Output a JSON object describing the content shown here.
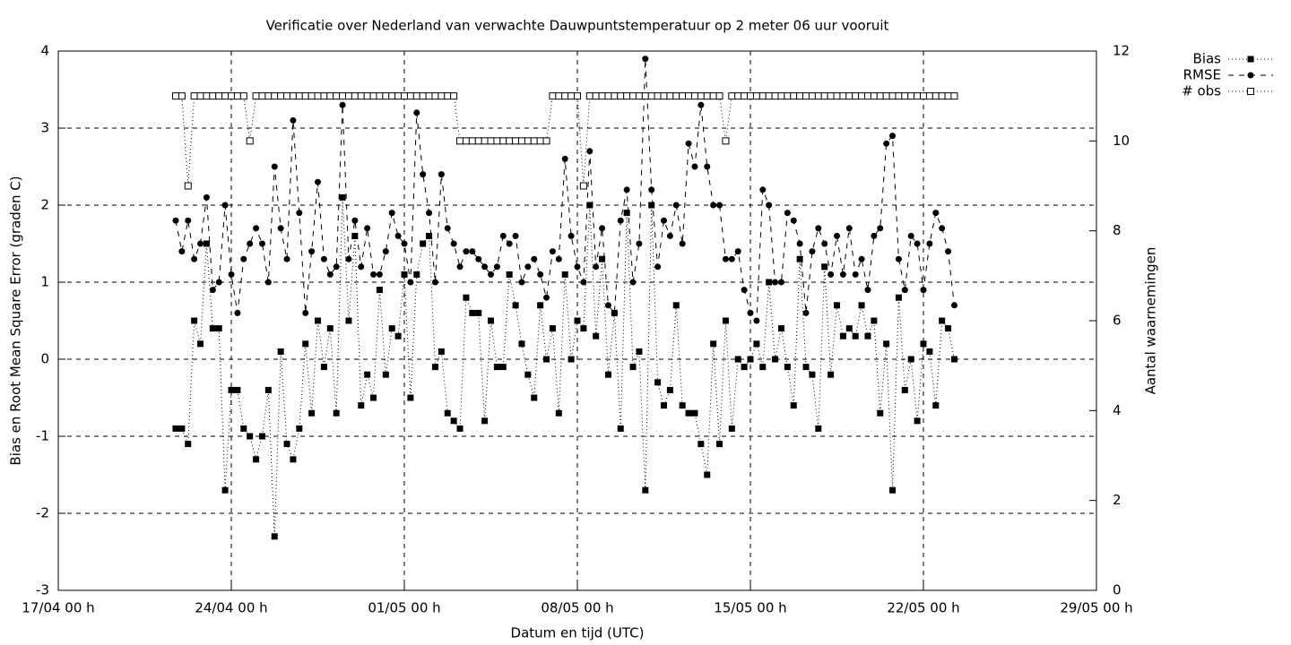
{
  "chart_data": {
    "type": "line",
    "title": "Verificatie over Nederland van verwachte Dauwpuntstemperatuur op 2 meter 06 uur vooruit",
    "xlabel": "Datum en tijd (UTC)",
    "ylabel": "Bias en Root Mean Square Error (graden C)",
    "y2label": "Aantal waarnemingen",
    "x": [
      "21/04 18",
      "22/04 00",
      "22/04 06",
      "22/04 12",
      "22/04 18",
      "23/04 00",
      "23/04 06",
      "23/04 12",
      "23/04 18",
      "24/04 00",
      "24/04 06",
      "24/04 12",
      "24/04 18",
      "25/04 00",
      "25/04 06",
      "25/04 12",
      "25/04 18",
      "26/04 00",
      "26/04 06",
      "26/04 12",
      "26/04 18",
      "27/04 00",
      "27/04 06",
      "27/04 12",
      "27/04 18",
      "28/04 00",
      "28/04 06",
      "28/04 12",
      "28/04 18",
      "29/04 00",
      "29/04 06",
      "29/04 12",
      "29/04 18",
      "30/04 00",
      "30/04 06",
      "30/04 12",
      "30/04 18",
      "01/05 00",
      "01/05 06",
      "01/05 12",
      "01/05 18",
      "02/05 00",
      "02/05 06",
      "02/05 12",
      "02/05 18",
      "03/05 00",
      "03/05 06",
      "03/05 12",
      "03/05 18",
      "04/05 00",
      "04/05 06",
      "04/05 12",
      "04/05 18",
      "05/05 00",
      "05/05 06",
      "05/05 12",
      "05/05 18",
      "06/05 00",
      "06/05 06",
      "06/05 12",
      "06/05 18",
      "07/05 00",
      "07/05 06",
      "07/05 12",
      "07/05 18",
      "08/05 00",
      "08/05 06",
      "08/05 12",
      "08/05 18",
      "09/05 00",
      "09/05 06",
      "09/05 12",
      "09/05 18",
      "10/05 00",
      "10/05 06",
      "10/05 12",
      "10/05 18",
      "11/05 00",
      "11/05 06",
      "11/05 12",
      "11/05 18",
      "12/05 00",
      "12/05 06",
      "12/05 12",
      "12/05 18",
      "13/05 00",
      "13/05 06",
      "13/05 12",
      "13/05 18",
      "14/05 00",
      "14/05 06",
      "14/05 12",
      "14/05 18",
      "15/05 00",
      "15/05 06",
      "15/05 12",
      "15/05 18",
      "16/05 00",
      "16/05 06",
      "16/05 12",
      "16/05 18",
      "17/05 00",
      "17/05 06",
      "17/05 12",
      "17/05 18",
      "18/05 00",
      "18/05 06",
      "18/05 12",
      "18/05 18",
      "19/05 00",
      "19/05 06",
      "19/05 12",
      "19/05 18",
      "20/05 00",
      "20/05 06",
      "20/05 12",
      "20/05 18",
      "21/05 00",
      "21/05 06",
      "21/05 12",
      "21/05 18",
      "22/05 00",
      "22/05 06",
      "22/05 12",
      "22/05 18",
      "23/05 00",
      "23/05 06"
    ],
    "series": [
      {
        "name": "Bias",
        "color": "#000000",
        "line_style": "dotted",
        "marker": "square",
        "values": [
          -0.9,
          -0.9,
          -1.1,
          0.5,
          0.2,
          1.5,
          0.4,
          0.4,
          -1.7,
          -0.4,
          -0.4,
          -0.9,
          -1.0,
          -1.3,
          -1.0,
          -0.4,
          -2.3,
          0.1,
          -1.1,
          -1.3,
          -0.9,
          0.2,
          -0.7,
          0.5,
          -0.1,
          0.4,
          -0.7,
          2.1,
          0.5,
          1.6,
          -0.6,
          -0.2,
          -0.5,
          0.9,
          -0.2,
          0.4,
          0.3,
          1.1,
          -0.5,
          1.1,
          1.5,
          1.6,
          -0.1,
          0.1,
          -0.7,
          -0.8,
          -0.9,
          0.8,
          0.6,
          0.6,
          -0.8,
          0.5,
          -0.1,
          -0.1,
          1.1,
          0.7,
          0.2,
          -0.2,
          -0.5,
          0.7,
          0.0,
          0.4,
          -0.7,
          1.1,
          0.0,
          0.5,
          0.4,
          2.0,
          0.3,
          1.3,
          -0.2,
          0.6,
          -0.9,
          1.9,
          -0.1,
          0.1,
          -1.7,
          2.0,
          -0.3,
          -0.6,
          -0.4,
          0.7,
          -0.6,
          -0.7,
          -0.7,
          -1.1,
          -1.5,
          0.2,
          -1.1,
          0.5,
          -0.9,
          0.0,
          -0.1,
          0.0,
          0.2,
          -0.1,
          1.0,
          0.0,
          0.4,
          -0.1,
          -0.6,
          1.3,
          -0.1,
          -0.2,
          -0.9,
          1.2,
          -0.2,
          0.7,
          0.3,
          0.4,
          0.3,
          0.7,
          0.3,
          0.5,
          -0.7,
          0.2,
          -1.7,
          0.8,
          -0.4,
          0.0,
          -0.8,
          0.2,
          0.1,
          -0.6,
          0.5,
          0.4,
          0.0
        ]
      },
      {
        "name": "RMSE",
        "color": "#000000",
        "line_style": "dashed",
        "marker": "circle",
        "values": [
          1.8,
          1.4,
          1.8,
          1.3,
          1.5,
          2.1,
          0.9,
          1.0,
          2.0,
          1.1,
          0.6,
          1.3,
          1.5,
          1.7,
          1.5,
          1.0,
          2.5,
          1.7,
          1.3,
          3.1,
          1.9,
          0.6,
          1.4,
          2.3,
          1.3,
          1.1,
          1.2,
          3.3,
          1.3,
          1.8,
          1.2,
          1.7,
          1.1,
          1.1,
          1.4,
          1.9,
          1.6,
          1.5,
          1.0,
          3.2,
          2.4,
          1.9,
          1.0,
          2.4,
          1.7,
          1.5,
          1.2,
          1.4,
          1.4,
          1.3,
          1.2,
          1.1,
          1.2,
          1.6,
          1.5,
          1.6,
          1.0,
          1.2,
          1.3,
          1.1,
          0.8,
          1.4,
          1.3,
          2.6,
          1.6,
          1.2,
          1.0,
          2.7,
          1.2,
          1.7,
          0.7,
          0.6,
          1.8,
          2.2,
          1.0,
          1.5,
          3.9,
          2.2,
          1.2,
          1.8,
          1.6,
          2.0,
          1.5,
          2.8,
          2.5,
          3.3,
          2.5,
          2.0,
          2.0,
          1.3,
          1.3,
          1.4,
          0.9,
          0.6,
          0.5,
          2.2,
          2.0,
          1.0,
          1.0,
          1.9,
          1.8,
          1.5,
          0.6,
          1.4,
          1.7,
          1.5,
          1.1,
          1.6,
          1.1,
          1.7,
          1.1,
          1.3,
          0.9,
          1.6,
          1.7,
          2.8,
          2.9,
          1.3,
          0.9,
          1.6,
          1.5,
          0.9,
          1.5,
          1.9,
          1.7,
          1.4,
          0.7
        ]
      },
      {
        "name": "# obs",
        "color": "#000000",
        "line_style": "dotted",
        "marker": "open-square",
        "axis": "y2",
        "values": [
          11,
          11,
          9,
          11,
          11,
          11,
          11,
          11,
          11,
          11,
          11,
          11,
          10,
          11,
          11,
          11,
          11,
          11,
          11,
          11,
          11,
          11,
          11,
          11,
          11,
          11,
          11,
          11,
          11,
          11,
          11,
          11,
          11,
          11,
          11,
          11,
          11,
          11,
          11,
          11,
          11,
          11,
          11,
          11,
          11,
          11,
          10,
          10,
          10,
          10,
          10,
          10,
          10,
          10,
          10,
          10,
          10,
          10,
          10,
          10,
          10,
          11,
          11,
          11,
          11,
          11,
          9,
          11,
          11,
          11,
          11,
          11,
          11,
          11,
          11,
          11,
          11,
          11,
          11,
          11,
          11,
          11,
          11,
          11,
          11,
          11,
          11,
          11,
          11,
          10,
          11,
          11,
          11,
          11,
          11,
          11,
          11,
          11,
          11,
          11,
          11,
          11,
          11,
          11,
          11,
          11,
          11,
          11,
          11,
          11,
          11,
          11,
          11,
          11,
          11,
          11,
          11,
          11,
          11,
          11,
          11,
          11,
          11,
          11,
          11,
          11,
          11
        ]
      }
    ],
    "xlim": [
      "17/04 00",
      "29/05 00"
    ],
    "xticks": [
      {
        "value": "17/04 00",
        "label": "17/04 00 h"
      },
      {
        "value": "24/04 00",
        "label": "24/04 00 h"
      },
      {
        "value": "01/05 00",
        "label": "01/05 00 h"
      },
      {
        "value": "08/05 00",
        "label": "08/05 00 h"
      },
      {
        "value": "15/05 00",
        "label": "15/05 00 h"
      },
      {
        "value": "22/05 00",
        "label": "22/05 00 h"
      },
      {
        "value": "29/05 00",
        "label": "29/05 00 h"
      }
    ],
    "ylim": [
      -3,
      4
    ],
    "yticks": [
      -3,
      -2,
      -1,
      0,
      1,
      2,
      3,
      4
    ],
    "y2lim": [
      0,
      12
    ],
    "y2ticks": [
      0,
      2,
      4,
      6,
      8,
      10,
      12
    ],
    "grid": true,
    "legend": "top-right-outside"
  }
}
